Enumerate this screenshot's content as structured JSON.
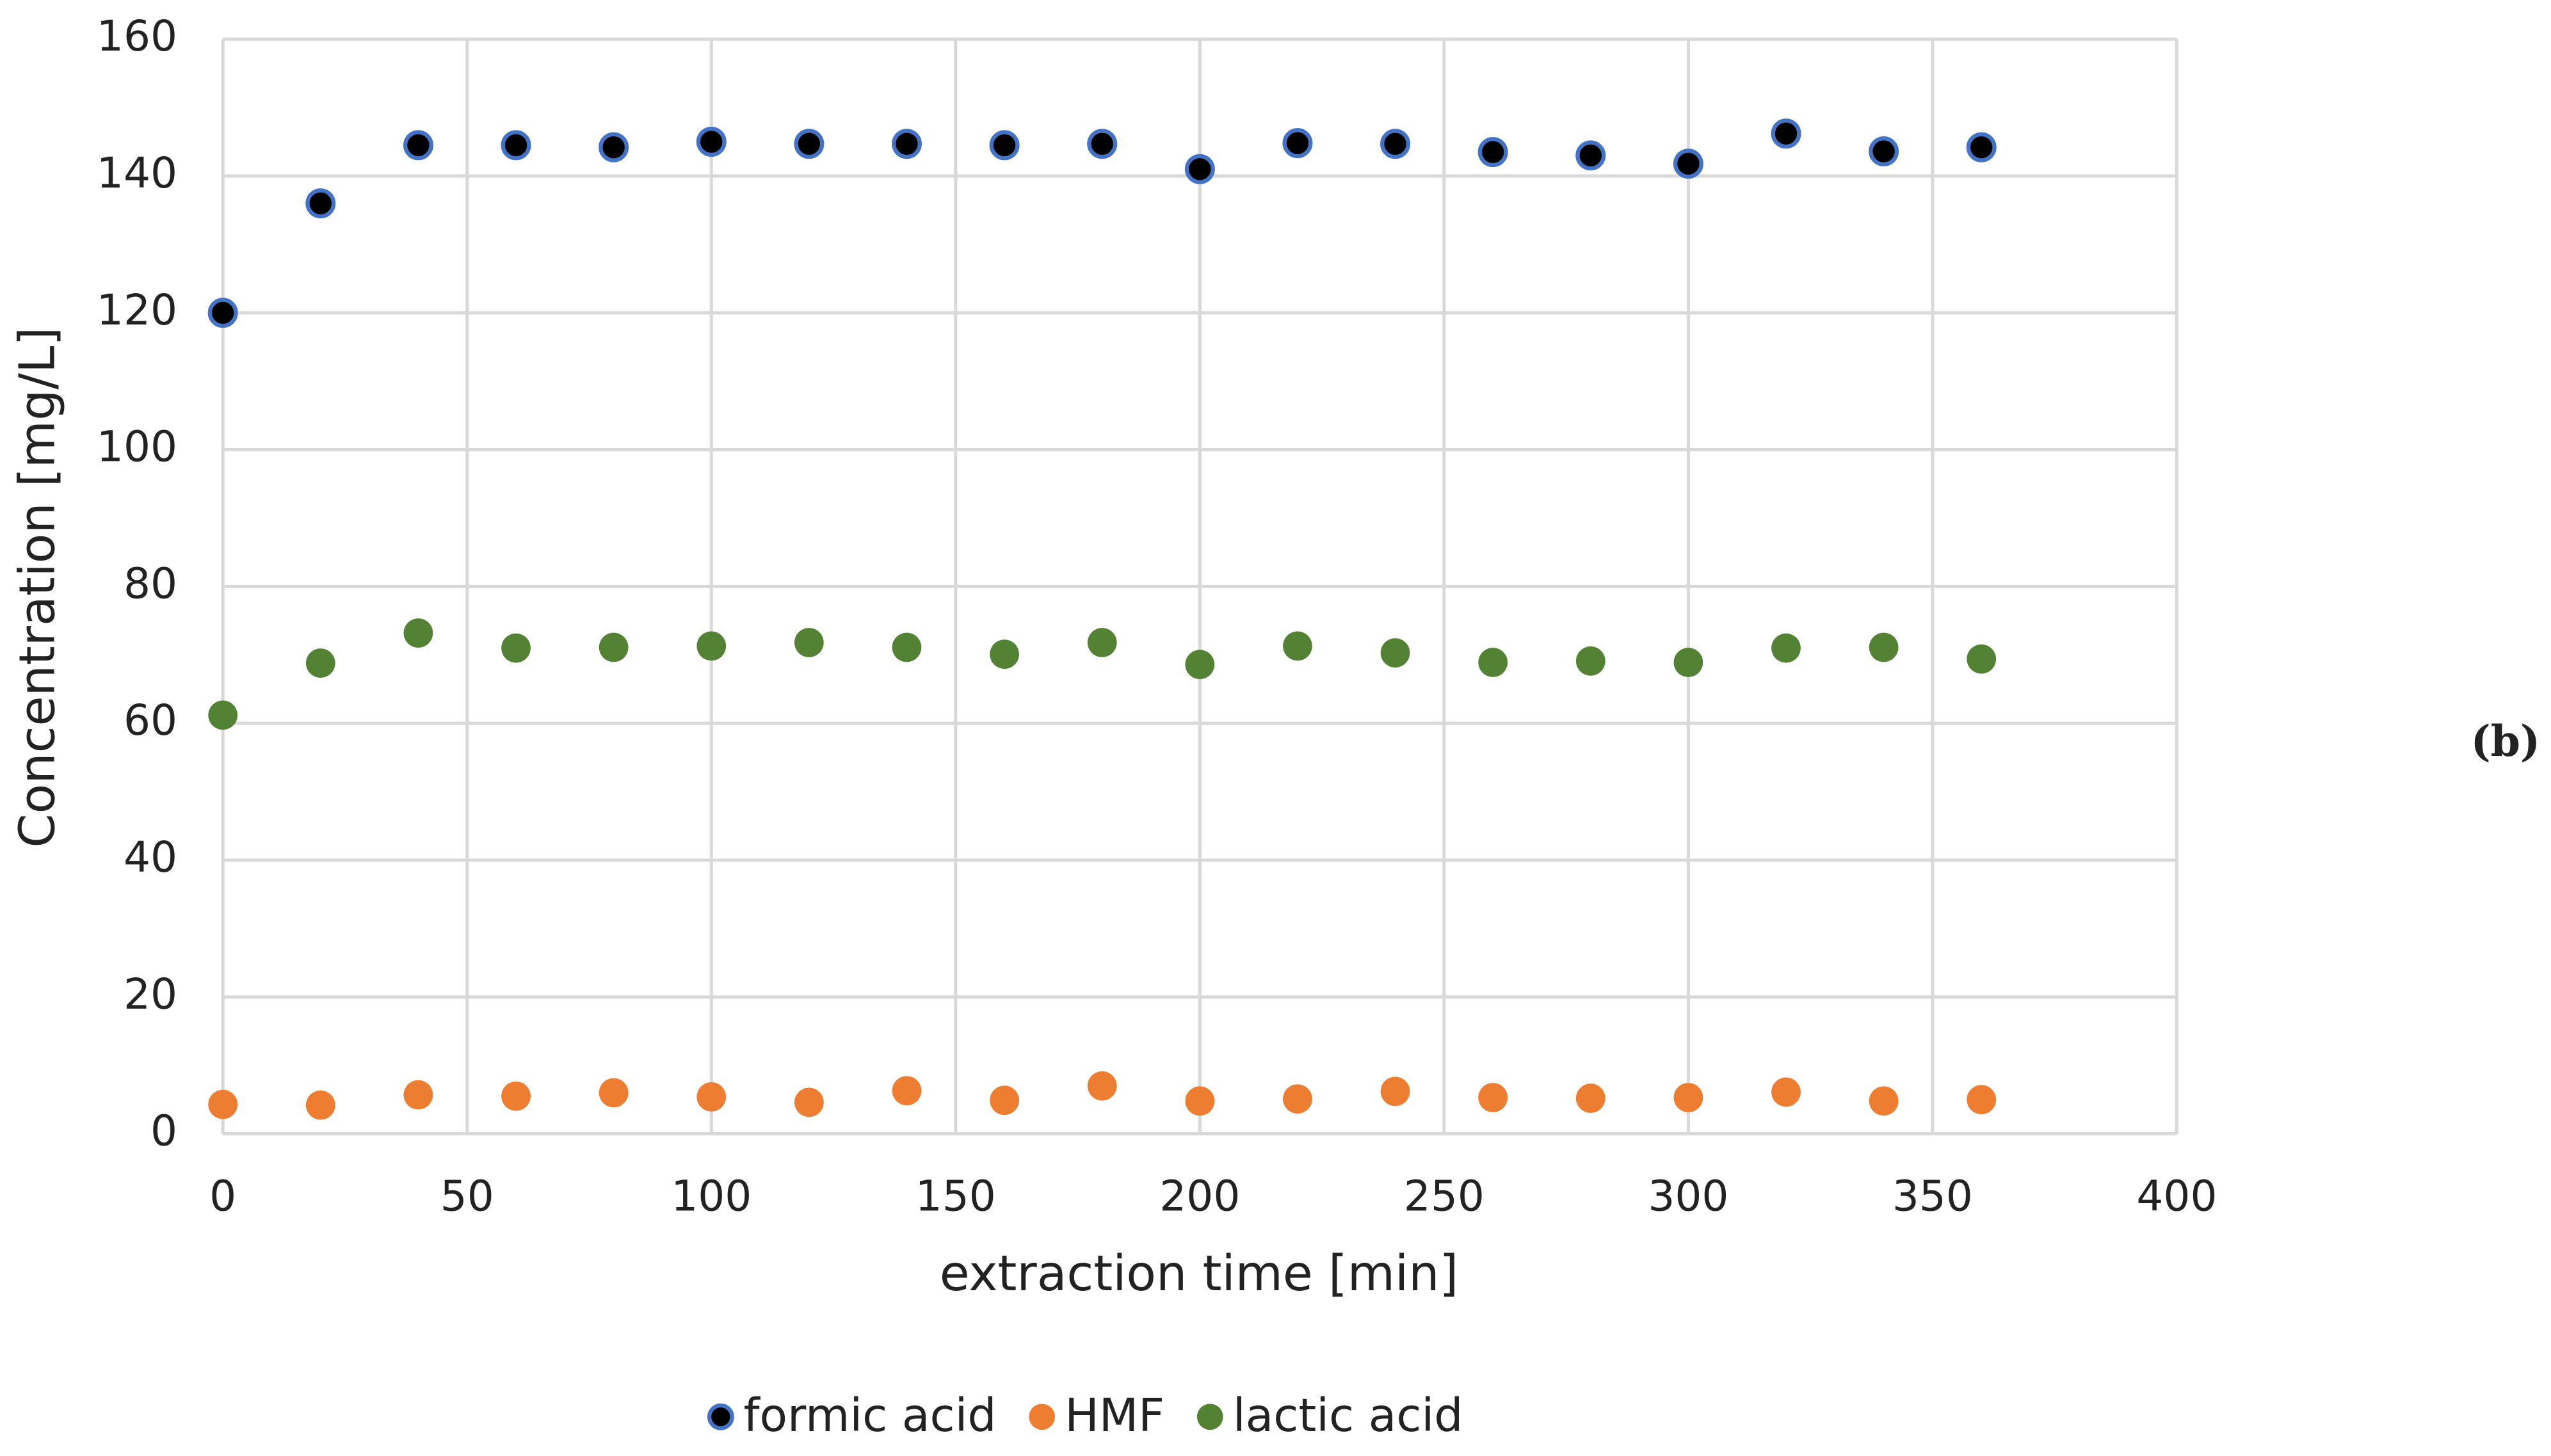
{
  "chart_data": {
    "type": "scatter",
    "panel_label": "(b)",
    "xlabel": "extraction time [min]",
    "ylabel": "Concentration [mg/L]",
    "x": [
      0,
      20,
      40,
      60,
      80,
      100,
      120,
      140,
      160,
      180,
      200,
      220,
      240,
      260,
      280,
      300,
      320,
      340,
      360
    ],
    "series": [
      {
        "name": "formic acid",
        "color": "#000000",
        "edge_color": "#4472c4",
        "values": [
          120,
          136,
          144.5,
          144.5,
          144.2,
          145,
          144.7,
          144.7,
          144.5,
          144.7,
          141,
          144.8,
          144.7,
          143.5,
          143,
          141.8,
          146.2,
          143.6,
          144.2
        ]
      },
      {
        "name": "HMF",
        "color": "#ed7d31",
        "values": [
          4.3,
          4.2,
          5.7,
          5.5,
          6.0,
          5.4,
          4.6,
          6.3,
          4.9,
          7.0,
          4.8,
          5.1,
          6.2,
          5.3,
          5.2,
          5.3,
          6.1,
          4.8,
          5.0
        ]
      },
      {
        "name": "lactic acid",
        "color": "#548235",
        "values": [
          61.2,
          68.8,
          73.2,
          71,
          71.1,
          71.3,
          71.8,
          71.1,
          70.1,
          71.8,
          68.6,
          71.3,
          70.3,
          68.9,
          69.1,
          68.9,
          71,
          71.1,
          69.4
        ]
      }
    ],
    "xlim": [
      0,
      400
    ],
    "xticks": [
      0,
      50,
      100,
      150,
      200,
      250,
      300,
      350,
      400
    ],
    "ylim": [
      0,
      160
    ],
    "yticks": [
      0,
      20,
      40,
      60,
      80,
      100,
      120,
      140,
      160
    ],
    "grid": true,
    "legend": "bottom"
  }
}
